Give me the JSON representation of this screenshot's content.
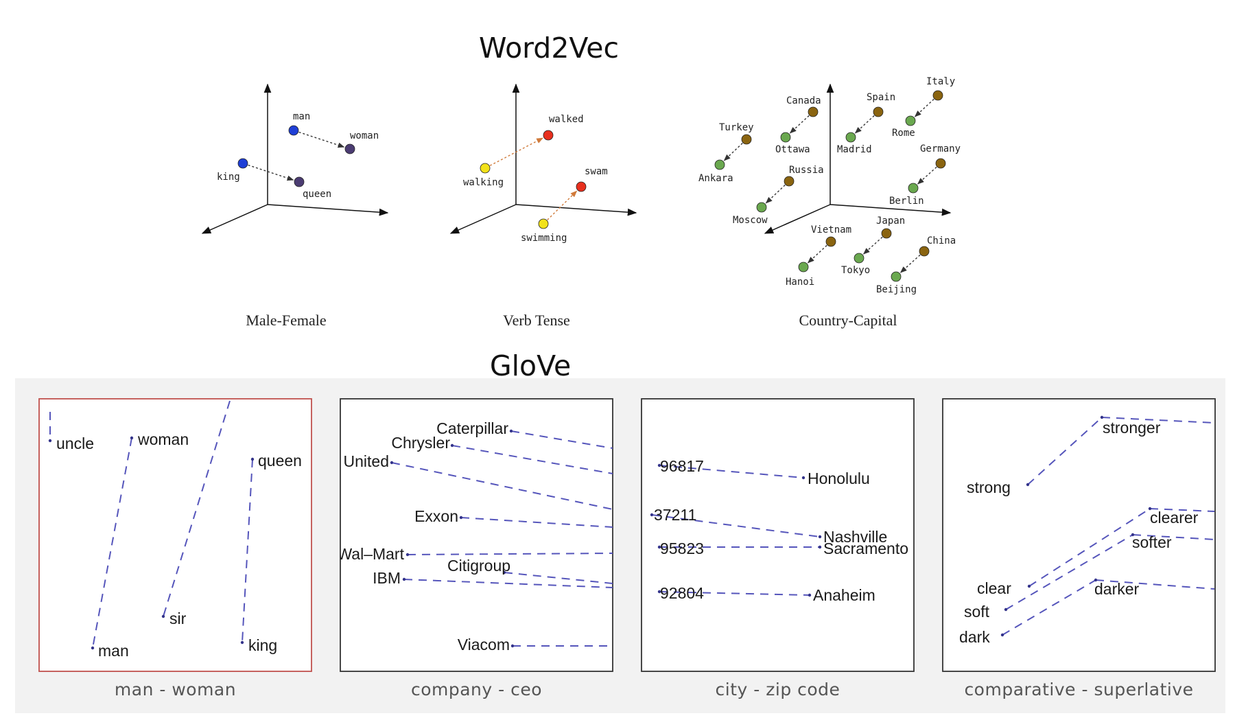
{
  "word2vec": {
    "title": "Word2Vec",
    "panels": [
      {
        "caption": "Male-Female",
        "points": [
          {
            "label": "man",
            "color": "#1f3fd6"
          },
          {
            "label": "woman",
            "color": "#4b3c72"
          },
          {
            "label": "king",
            "color": "#1f3fd6"
          },
          {
            "label": "queen",
            "color": "#4b3c72"
          }
        ],
        "pairs": [
          [
            "man",
            "woman"
          ],
          [
            "king",
            "queen"
          ]
        ]
      },
      {
        "caption": "Verb Tense",
        "points": [
          {
            "label": "walking",
            "color": "#f2e21a"
          },
          {
            "label": "walked",
            "color": "#e8301e"
          },
          {
            "label": "swimming",
            "color": "#f2e21a"
          },
          {
            "label": "swam",
            "color": "#e8301e"
          }
        ],
        "pairs": [
          [
            "walking",
            "walked"
          ],
          [
            "swimming",
            "swam"
          ]
        ]
      },
      {
        "caption": "Country-Capital",
        "country_color": "#8a6410",
        "capital_color": "#6aa84f",
        "pairs": [
          {
            "country": "Italy",
            "capital": "Rome"
          },
          {
            "country": "Spain",
            "capital": "Madrid"
          },
          {
            "country": "Canada",
            "capital": "Ottawa"
          },
          {
            "country": "Turkey",
            "capital": "Ankara"
          },
          {
            "country": "Germany",
            "capital": "Berlin"
          },
          {
            "country": "Russia",
            "capital": "Moscow"
          },
          {
            "country": "Vietnam",
            "capital": "Hanoi"
          },
          {
            "country": "Japan",
            "capital": "Tokyo"
          },
          {
            "country": "China",
            "capital": "Beijing"
          }
        ]
      }
    ]
  },
  "glove": {
    "title": "GloVe",
    "panels": [
      {
        "caption": "man - woman",
        "border_color": "#c0504d",
        "labels": [
          "uncle",
          "woman",
          "queen",
          "sir",
          "man",
          "king"
        ]
      },
      {
        "caption": "company - ceo",
        "border_color": "#333333",
        "labels": [
          "Caterpillar",
          "Chrysler",
          "United",
          "Exxon",
          "Wal–Mart",
          "Citigroup",
          "IBM",
          "Viacom"
        ]
      },
      {
        "caption": "city - zip code",
        "border_color": "#333333",
        "labels": [
          "96817",
          "Honolulu",
          "37211",
          "Nashville",
          "95823",
          "Sacramento",
          "92804",
          "Anaheim"
        ]
      },
      {
        "caption": "comparative - superlative",
        "border_color": "#333333",
        "labels": [
          "stronger",
          "strong",
          "clearer",
          "softer",
          "clear",
          "soft",
          "darker",
          "dark"
        ]
      }
    ]
  }
}
